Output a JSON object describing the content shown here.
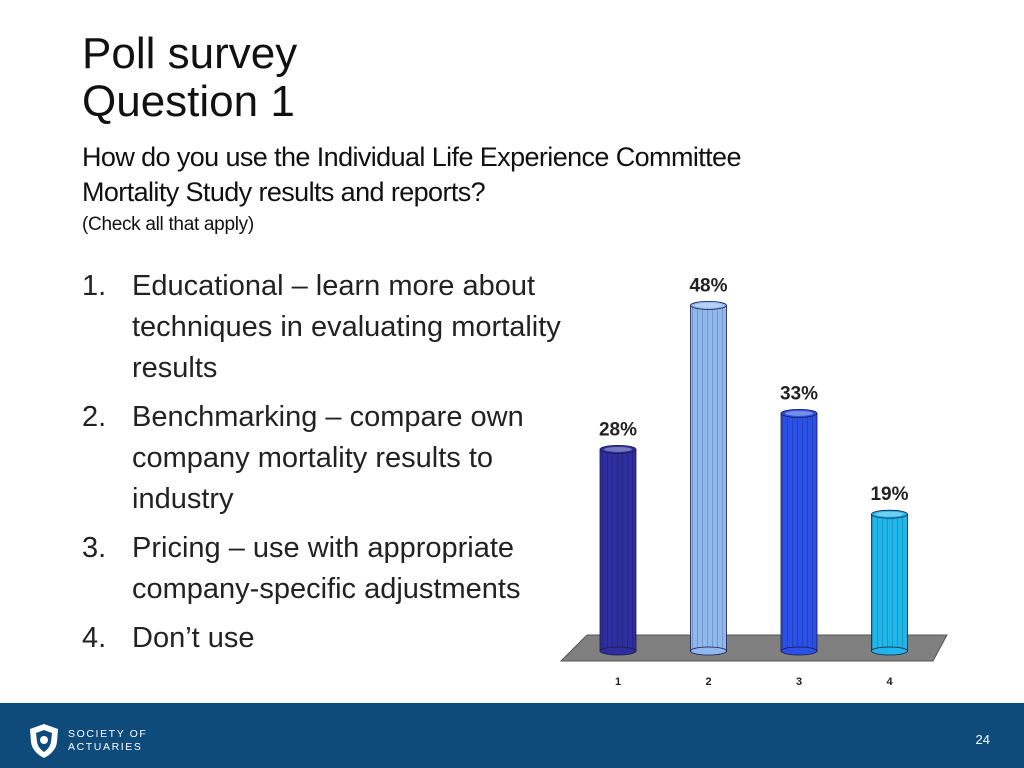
{
  "slide": {
    "title_line1": "Poll survey",
    "title_line2": "Question 1",
    "subtitle_line1": "How do you use the Individual Life Experience Committee",
    "subtitle_line2": "Mortality Study results and reports?",
    "note": "(Check all that apply)"
  },
  "options": [
    {
      "num": "1.",
      "text": "Educational – learn more about techniques in evaluating mortality results"
    },
    {
      "num": "2.",
      "text": "Benchmarking – compare own company mortality results to industry"
    },
    {
      "num": "3.",
      "text": "Pricing – use with appropriate company-specific adjustments"
    },
    {
      "num": "4.",
      "text": "Don’t use"
    }
  ],
  "chart_data": {
    "type": "bar",
    "categories": [
      "1",
      "2",
      "3",
      "4"
    ],
    "values": [
      28,
      48,
      33,
      19
    ],
    "data_labels": [
      "28%",
      "48%",
      "33%",
      "19%"
    ],
    "colors": [
      "#2e2e9e",
      "#8fb8ee",
      "#2b50e6",
      "#1fb6ea"
    ],
    "ylim": [
      0,
      50
    ],
    "grid": false,
    "legend": "none",
    "title": "",
    "xlabel": "",
    "ylabel": ""
  },
  "footer": {
    "brand_line1": "SOCIETY OF",
    "brand_line2": "ACTUARIES",
    "page_number": "24",
    "colors": {
      "background": "#0e4a7a"
    }
  }
}
